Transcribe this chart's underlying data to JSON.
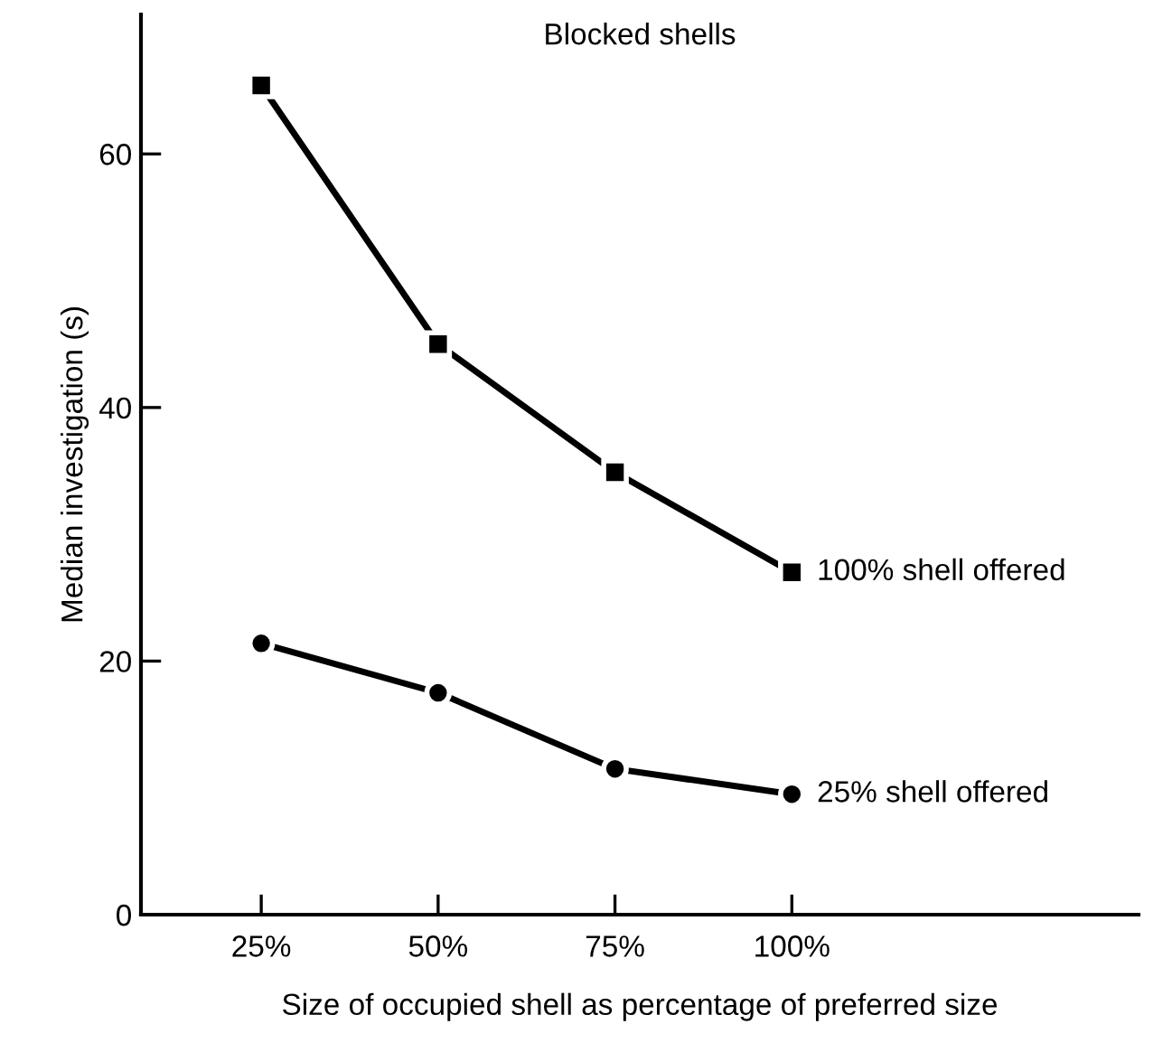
{
  "chart_data": {
    "type": "line",
    "title": "Blocked shells",
    "xlabel": "Size of occupied shell as percentage of preferred size",
    "ylabel": "Median investigation (s)",
    "x": [
      25,
      50,
      75,
      100
    ],
    "series": [
      {
        "name": "100% shell offered",
        "color": "#000000",
        "marker": "square",
        "values": [
          65.4,
          45.0,
          34.9,
          27.0
        ]
      },
      {
        "name": "25% shell offered",
        "color": "#000000",
        "marker": "circle",
        "values": [
          21.4,
          17.5,
          11.5,
          9.5
        ]
      }
    ],
    "xlim": [
      8,
      149
    ],
    "xticks": [
      {
        "value": 25,
        "label": "25%"
      },
      {
        "value": 50,
        "label": "50%"
      },
      {
        "value": 75,
        "label": "75%"
      },
      {
        "value": 100,
        "label": "100%"
      }
    ],
    "ylim": [
      0,
      71
    ],
    "yticks": [
      0,
      20,
      40,
      60
    ],
    "grid": false,
    "legend": false,
    "line_style": "solid"
  }
}
